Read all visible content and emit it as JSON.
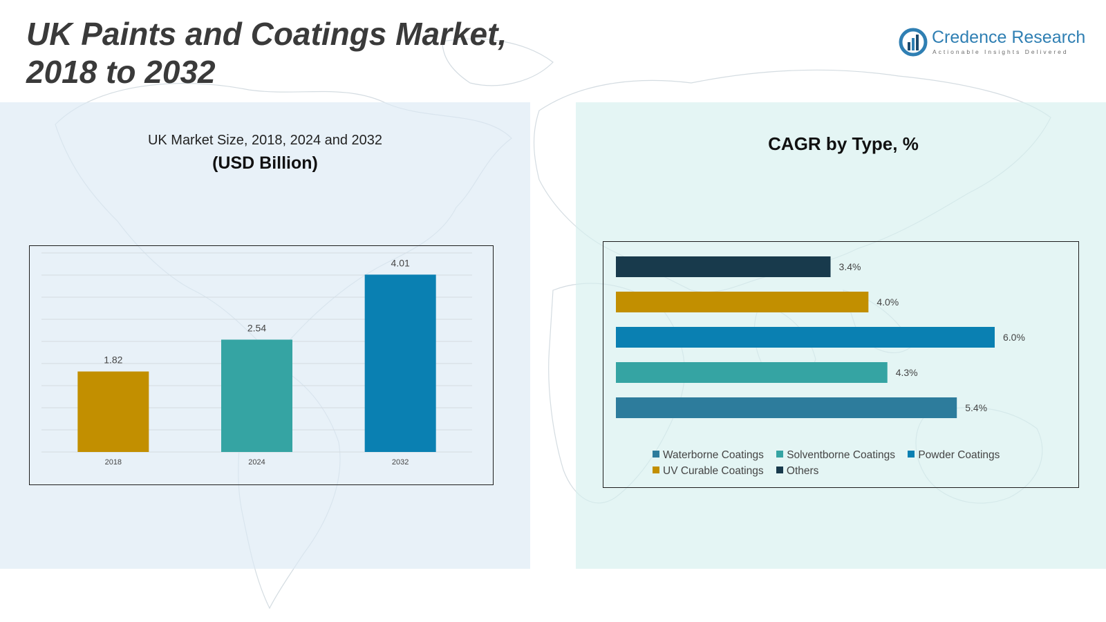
{
  "title": "UK Paints and Coatings Market, 2018 to 2032",
  "logo": {
    "name": "Credence Research",
    "tagline": "Actionable Insights Delivered",
    "icon": "bar-chart-circle-icon"
  },
  "left_panel": {
    "subtitle": "UK Market Size, 2018, 2024 and 2032",
    "unit": "(USD Billion)"
  },
  "right_panel": {
    "title": "CAGR by Type, %"
  },
  "colors": {
    "gold": "#c28f00",
    "teal": "#35a4a3",
    "blue": "#0a80b2",
    "steel": "#2d7c9c",
    "navy": "#183a4c"
  },
  "chart_data": [
    {
      "type": "bar",
      "title": "UK Market Size, 2018, 2024 and 2032",
      "ylabel": "(USD Billion)",
      "categories": [
        "2018",
        "2024",
        "2032"
      ],
      "values": [
        1.82,
        2.54,
        4.01
      ],
      "labels": [
        "1.82",
        "2.54",
        "4.01"
      ],
      "colors": [
        "#c28f00",
        "#35a4a3",
        "#0a80b2"
      ],
      "ylim": [
        0,
        4.5
      ],
      "grid": true
    },
    {
      "type": "bar",
      "orientation": "horizontal",
      "title": "CAGR by Type, %",
      "categories": [
        "Others",
        "UV Curable Coatings",
        "Powder Coatings",
        "Solventborne Coatings",
        "Waterborne Coatings"
      ],
      "values": [
        3.4,
        4.0,
        6.0,
        4.3,
        5.4
      ],
      "labels": [
        "3.4%",
        "4.0%",
        "6.0%",
        "4.3%",
        "5.4%"
      ],
      "colors": [
        "#183a4c",
        "#c28f00",
        "#0a80b2",
        "#35a4a3",
        "#2d7c9c"
      ],
      "xlim": [
        0,
        6.0
      ],
      "grid": false,
      "legend": {
        "position": "bottom",
        "rows": [
          [
            {
              "label": "Waterborne Coatings",
              "color": "#2d7c9c"
            },
            {
              "label": "Solventborne Coatings",
              "color": "#35a4a3"
            },
            {
              "label": "Powder Coatings",
              "color": "#0a80b2"
            }
          ],
          [
            {
              "label": "UV Curable Coatings",
              "color": "#c28f00"
            },
            {
              "label": "Others",
              "color": "#183a4c"
            }
          ]
        ]
      }
    }
  ]
}
